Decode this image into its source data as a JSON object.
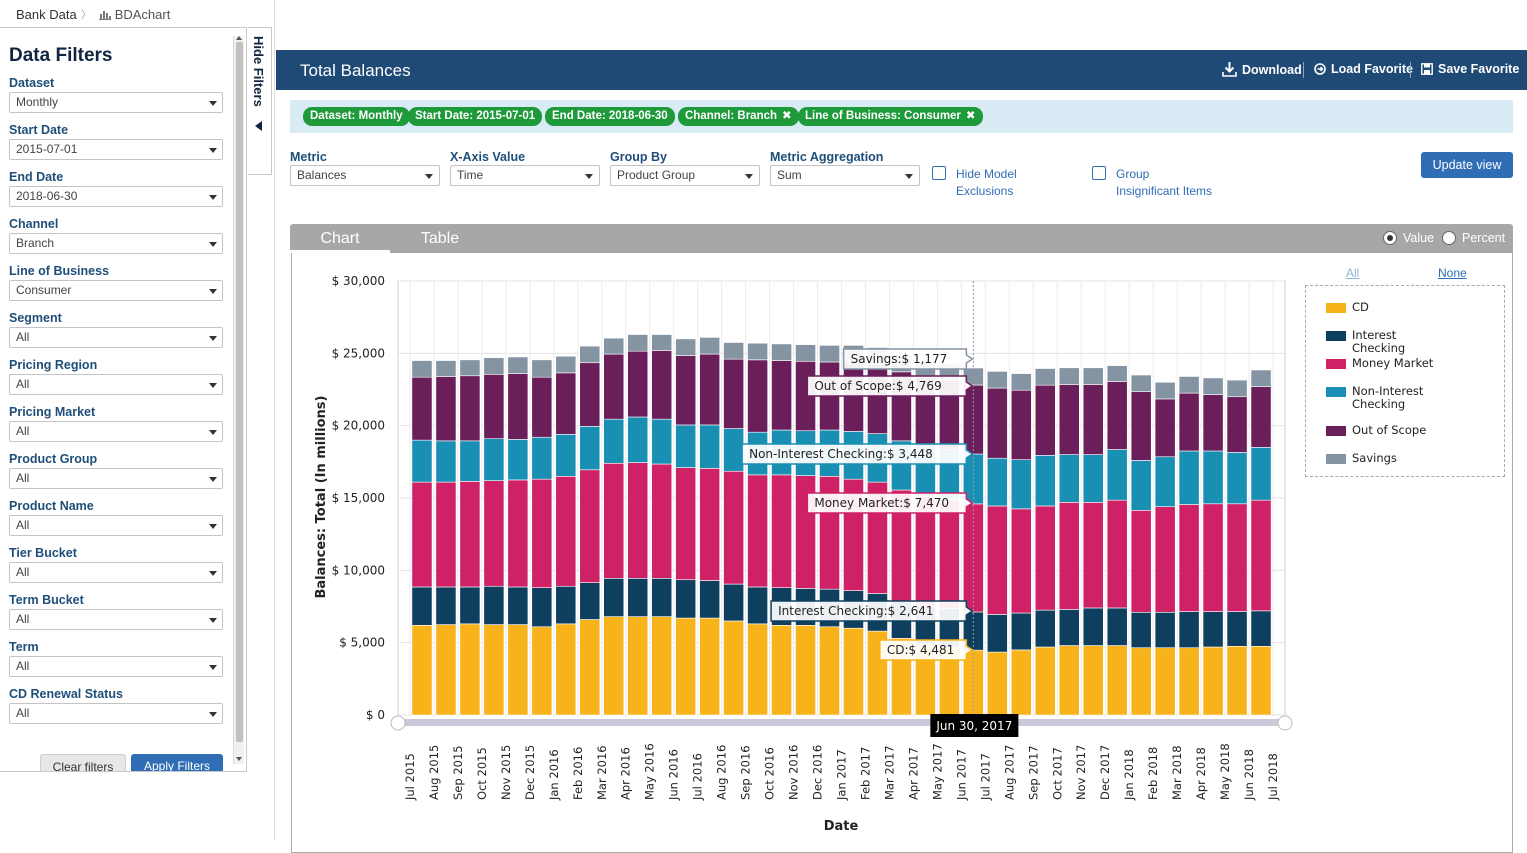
{
  "breadcrumb": {
    "root": "Bank Data",
    "current": "BDAchart"
  },
  "sidebar": {
    "title": "Data Filters",
    "filters": [
      {
        "label": "Dataset",
        "value": "Monthly"
      },
      {
        "label": "Start Date",
        "value": "2015-07-01"
      },
      {
        "label": "End Date",
        "value": "2018-06-30"
      },
      {
        "label": "Channel",
        "value": "Branch"
      },
      {
        "label": "Line of Business",
        "value": "Consumer"
      },
      {
        "label": "Segment",
        "value": "All"
      },
      {
        "label": "Pricing Region",
        "value": "All"
      },
      {
        "label": "Pricing Market",
        "value": "All"
      },
      {
        "label": "Product Group",
        "value": "All"
      },
      {
        "label": "Product Name",
        "value": "All"
      },
      {
        "label": "Tier Bucket",
        "value": "All"
      },
      {
        "label": "Term Bucket",
        "value": "All"
      },
      {
        "label": "Term",
        "value": "All"
      },
      {
        "label": "CD Renewal Status",
        "value": "All"
      }
    ],
    "clear_label": "Clear filters",
    "apply_label": "Apply Filters",
    "hide_label": "Hide Filters"
  },
  "header": {
    "title": "Total Balances",
    "download": "Download",
    "load_favorite": "Load Favorite",
    "save_favorite": "Save Favorite"
  },
  "chips": [
    {
      "text": "Dataset: Monthly",
      "removable": false
    },
    {
      "text": "Start Date: 2015-07-01",
      "removable": false
    },
    {
      "text": "End Date: 2018-06-30",
      "removable": false
    },
    {
      "text": "Channel: Branch",
      "removable": true
    },
    {
      "text": "Line of Business: Consumer",
      "removable": true
    }
  ],
  "controls": {
    "metric": {
      "label": "Metric",
      "value": "Balances"
    },
    "xaxis": {
      "label": "X-Axis Value",
      "value": "Time"
    },
    "groupby": {
      "label": "Group By",
      "value": "Product Group"
    },
    "aggregation": {
      "label": "Metric Aggregation",
      "value": "Sum"
    },
    "hide_model": {
      "line1": "Hide Model",
      "line2": "Exclusions",
      "checked": false
    },
    "group_insig": {
      "line1": "Group",
      "line2": "Insignificant Items",
      "checked": false
    },
    "update_label": "Update view"
  },
  "tabs": {
    "chart": "Chart",
    "table": "Table",
    "active": "chart"
  },
  "mode": {
    "value": "Value",
    "percent": "Percent",
    "selected": "Value"
  },
  "legend_links": {
    "all": "All",
    "none": "None"
  },
  "colors": {
    "CD": "#f8b31a",
    "Interest Checking": "#0f3f5e",
    "Money Market": "#cf2166",
    "Non-Interest Checking": "#1a8fb4",
    "Out of Scope": "#6a1f5a",
    "Savings": "#8494a2"
  },
  "chart_data": {
    "type": "bar",
    "stacked": true,
    "ylabel": "Balances: Total (In millions)",
    "xlabel": "Date",
    "ylim": [
      0,
      30000
    ],
    "yticks": [
      "$ 0",
      "$ 5,000",
      "$ 10,000",
      "$ 15,000",
      "$ 20,000",
      "$ 25,000",
      "$ 30,000"
    ],
    "grid": true,
    "legend_position": "right",
    "categories": [
      "Jul 2015",
      "Aug 2015",
      "Sep 2015",
      "Oct 2015",
      "Nov 2015",
      "Dec 2015",
      "Jan 2016",
      "Feb 2016",
      "Mar 2016",
      "Apr 2016",
      "May 2016",
      "Jun 2016",
      "Jul 2016",
      "Aug 2016",
      "Sep 2016",
      "Oct 2016",
      "Nov 2016",
      "Dec 2016",
      "Jan 2017",
      "Feb 2017",
      "Mar 2017",
      "Apr 2017",
      "May 2017",
      "Jun 2017",
      "Jul 2017",
      "Aug 2017",
      "Sep 2017",
      "Oct 2017",
      "Nov 2017",
      "Dec 2017",
      "Jan 2018",
      "Feb 2018",
      "Mar 2018",
      "Apr 2018",
      "May 2018",
      "Jun 2018"
    ],
    "axis_tick_labels": [
      "Jul 2015",
      "Aug 2015",
      "Sep 2015",
      "Oct 2015",
      "Nov 2015",
      "Dec 2015",
      "Jan 2016",
      "Feb 2016",
      "Mar 2016",
      "Apr 2016",
      "May 2016",
      "Jun 2016",
      "Jul 2016",
      "Aug 2016",
      "Sep 2016",
      "Oct 2016",
      "Nov 2016",
      "Dec 2016",
      "Jan 2017",
      "Feb 2017",
      "Mar 2017",
      "Apr 2017",
      "May 2017",
      "Jun 2017",
      "Jul 2017",
      "Aug 2017",
      "Sep 2017",
      "Oct 2017",
      "Nov 2017",
      "Dec 2017",
      "Jan 2018",
      "Feb 2018",
      "Mar 2018",
      "Apr 2018",
      "May 2018",
      "Jun 2018",
      "Jul 2018"
    ],
    "series": [
      {
        "name": "CD",
        "values": [
          6200,
          6250,
          6300,
          6250,
          6250,
          6100,
          6300,
          6600,
          6800,
          6800,
          6800,
          6700,
          6700,
          6500,
          6300,
          6200,
          6200,
          6100,
          6000,
          5800,
          5300,
          4900,
          4700,
          4481,
          4350,
          4500,
          4700,
          4800,
          4800,
          4800,
          4650,
          4650,
          4650,
          4700,
          4750,
          4750
        ]
      },
      {
        "name": "Interest Checking",
        "values": [
          2650,
          2600,
          2550,
          2650,
          2600,
          2700,
          2600,
          2550,
          2650,
          2650,
          2650,
          2650,
          2600,
          2550,
          2550,
          2600,
          2550,
          2600,
          2600,
          2600,
          2550,
          2600,
          2650,
          2641,
          2600,
          2550,
          2550,
          2500,
          2600,
          2600,
          2450,
          2450,
          2500,
          2450,
          2400,
          2450
        ]
      },
      {
        "name": "Money Market",
        "values": [
          7250,
          7250,
          7300,
          7300,
          7400,
          7500,
          7600,
          7800,
          7950,
          8000,
          7900,
          7750,
          7750,
          7800,
          7750,
          7800,
          7800,
          7800,
          7700,
          7700,
          7700,
          7600,
          7550,
          7470,
          7500,
          7200,
          7200,
          7400,
          7300,
          7450,
          7050,
          7300,
          7400,
          7450,
          7450,
          7650
        ]
      },
      {
        "name": "Non-Interest Checking",
        "values": [
          2900,
          2850,
          2800,
          2900,
          2800,
          2900,
          2900,
          3000,
          3050,
          3150,
          3100,
          2950,
          3000,
          2950,
          2950,
          3100,
          3100,
          3200,
          3300,
          3350,
          3400,
          3450,
          3450,
          3448,
          3300,
          3400,
          3500,
          3300,
          3300,
          3500,
          3450,
          3450,
          3700,
          3650,
          3550,
          3650
        ]
      },
      {
        "name": "Out of Scope",
        "values": [
          4350,
          4450,
          4500,
          4450,
          4550,
          4150,
          4250,
          4400,
          4500,
          4550,
          4750,
          4800,
          4900,
          4800,
          5000,
          4800,
          4800,
          4700,
          4800,
          4770,
          4770,
          4800,
          4800,
          4769,
          4850,
          4800,
          4850,
          4850,
          4850,
          4700,
          4750,
          4000,
          4000,
          3900,
          3850,
          4200
        ]
      },
      {
        "name": "Savings",
        "values": [
          1150,
          1100,
          1100,
          1150,
          1150,
          1200,
          1150,
          1150,
          1100,
          1150,
          1100,
          1150,
          1150,
          1150,
          1150,
          1150,
          1150,
          1150,
          1150,
          1180,
          1180,
          1180,
          1180,
          1177,
          1150,
          1150,
          1150,
          1150,
          1150,
          1100,
          1150,
          1150,
          1150,
          1150,
          1150,
          1150
        ]
      }
    ],
    "hover": {
      "index": 23,
      "date_label": "Jun 30, 2017",
      "tooltips": [
        {
          "series": "Savings",
          "text": "Savings:$ 1,177"
        },
        {
          "series": "Out of Scope",
          "text": "Out of Scope:$ 4,769"
        },
        {
          "series": "Non-Interest Checking",
          "text": "Non-Interest Checking:$ 3,448"
        },
        {
          "series": "Money Market",
          "text": "Money Market:$ 7,470"
        },
        {
          "series": "Interest Checking",
          "text": "Interest Checking:$ 2,641"
        },
        {
          "series": "CD",
          "text": "CD:$ 4,481"
        }
      ]
    }
  }
}
